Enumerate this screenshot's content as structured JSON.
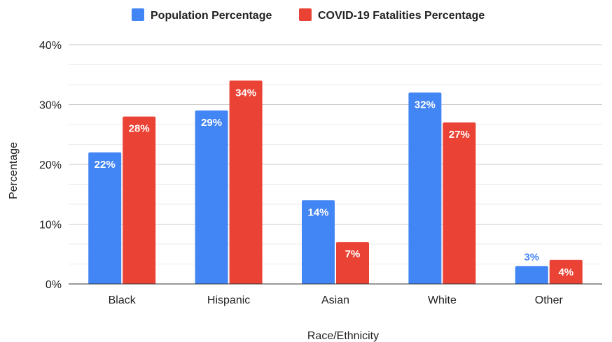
{
  "chart_data": {
    "type": "bar",
    "title": "",
    "xlabel": "Race/Ethnicity",
    "ylabel": "Percentage",
    "categories": [
      "Black",
      "Hispanic",
      "Asian",
      "White",
      "Other"
    ],
    "series": [
      {
        "name": "Population Percentage",
        "color": "#4285f4",
        "values": [
          22,
          29,
          14,
          32,
          3
        ],
        "labels": [
          "22%",
          "29%",
          "14%",
          "32%",
          "3%"
        ]
      },
      {
        "name": "COVID-19 Fatalities Percentage",
        "color": "#ea4335",
        "values": [
          28,
          34,
          7,
          27,
          4
        ],
        "labels": [
          "28%",
          "34%",
          "7%",
          "27%",
          "4%"
        ]
      }
    ],
    "ylim": [
      0,
      40
    ],
    "yticks": [
      0,
      10,
      20,
      30,
      40
    ],
    "ytick_labels": [
      "0%",
      "10%",
      "20%",
      "30%",
      "40%"
    ],
    "grid": true,
    "legend_position": "top-center"
  }
}
